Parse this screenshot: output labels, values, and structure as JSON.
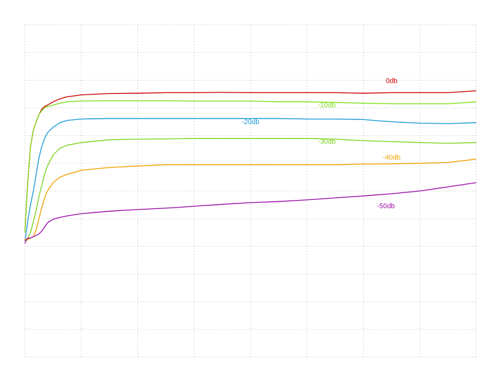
{
  "chart_data": {
    "type": "line",
    "title": "",
    "xlabel": "",
    "ylabel": "",
    "grid": true,
    "xlim": [
      0,
      16
    ],
    "ylim": [
      0,
      12
    ],
    "x": [
      0,
      0.05,
      0.1,
      0.2,
      0.3,
      0.4,
      0.5,
      0.6,
      0.7,
      0.8,
      1.0,
      1.25,
      1.5,
      2.0,
      3.0,
      4.0,
      5.0,
      6.0,
      7.0,
      8.0,
      9.0,
      10.0,
      11.0,
      12.0,
      13.0,
      14.0,
      15.0,
      16.0
    ],
    "series": [
      {
        "name": "0db",
        "color": "#cc0000",
        "values": [
          4.5,
          5.4,
          6.3,
          7.6,
          8.2,
          8.5,
          8.75,
          8.95,
          9.05,
          9.1,
          9.22,
          9.33,
          9.4,
          9.47,
          9.52,
          9.53,
          9.55,
          9.55,
          9.56,
          9.55,
          9.55,
          9.55,
          9.55,
          9.53,
          9.55,
          9.55,
          9.55,
          9.62
        ]
      },
      {
        "name": "-10db",
        "color": "#7ee01a",
        "values": [
          4.5,
          5.4,
          6.3,
          7.6,
          8.2,
          8.5,
          8.75,
          8.9,
          9.0,
          9.05,
          9.1,
          9.17,
          9.22,
          9.25,
          9.26,
          9.26,
          9.26,
          9.25,
          9.25,
          9.25,
          9.22,
          9.22,
          9.2,
          9.17,
          9.15,
          9.15,
          9.15,
          9.22
        ]
      },
      {
        "name": "-20db",
        "color": "#1a9bd6",
        "values": [
          4.2,
          4.5,
          4.9,
          5.5,
          6.0,
          6.6,
          7.2,
          7.6,
          7.9,
          8.1,
          8.3,
          8.47,
          8.55,
          8.6,
          8.62,
          8.62,
          8.62,
          8.62,
          8.62,
          8.62,
          8.62,
          8.6,
          8.6,
          8.58,
          8.5,
          8.45,
          8.43,
          8.47
        ]
      },
      {
        "name": "-30db",
        "color": "#7ed321",
        "values": [
          4.2,
          4.2,
          4.3,
          4.5,
          4.9,
          5.3,
          5.8,
          6.2,
          6.6,
          6.9,
          7.3,
          7.55,
          7.65,
          7.75,
          7.85,
          7.87,
          7.88,
          7.9,
          7.9,
          7.9,
          7.9,
          7.9,
          7.87,
          7.82,
          7.78,
          7.75,
          7.72,
          7.75
        ]
      },
      {
        "name": "-40db",
        "color": "#f0a000",
        "values": [
          4.3,
          4.2,
          4.25,
          4.3,
          4.35,
          4.6,
          5.0,
          5.4,
          5.75,
          6.0,
          6.3,
          6.5,
          6.6,
          6.75,
          6.85,
          6.9,
          6.95,
          6.95,
          6.95,
          6.95,
          6.95,
          6.95,
          6.95,
          6.97,
          6.98,
          7.0,
          7.03,
          7.15
        ]
      },
      {
        "name": "-50db",
        "color": "#9b10a8",
        "values": [
          4.1,
          4.25,
          4.3,
          4.3,
          4.35,
          4.4,
          4.45,
          4.55,
          4.7,
          4.85,
          4.98,
          5.05,
          5.1,
          5.18,
          5.27,
          5.33,
          5.38,
          5.45,
          5.52,
          5.58,
          5.62,
          5.68,
          5.75,
          5.82,
          5.9,
          6.0,
          6.15,
          6.3
        ]
      }
    ]
  }
}
